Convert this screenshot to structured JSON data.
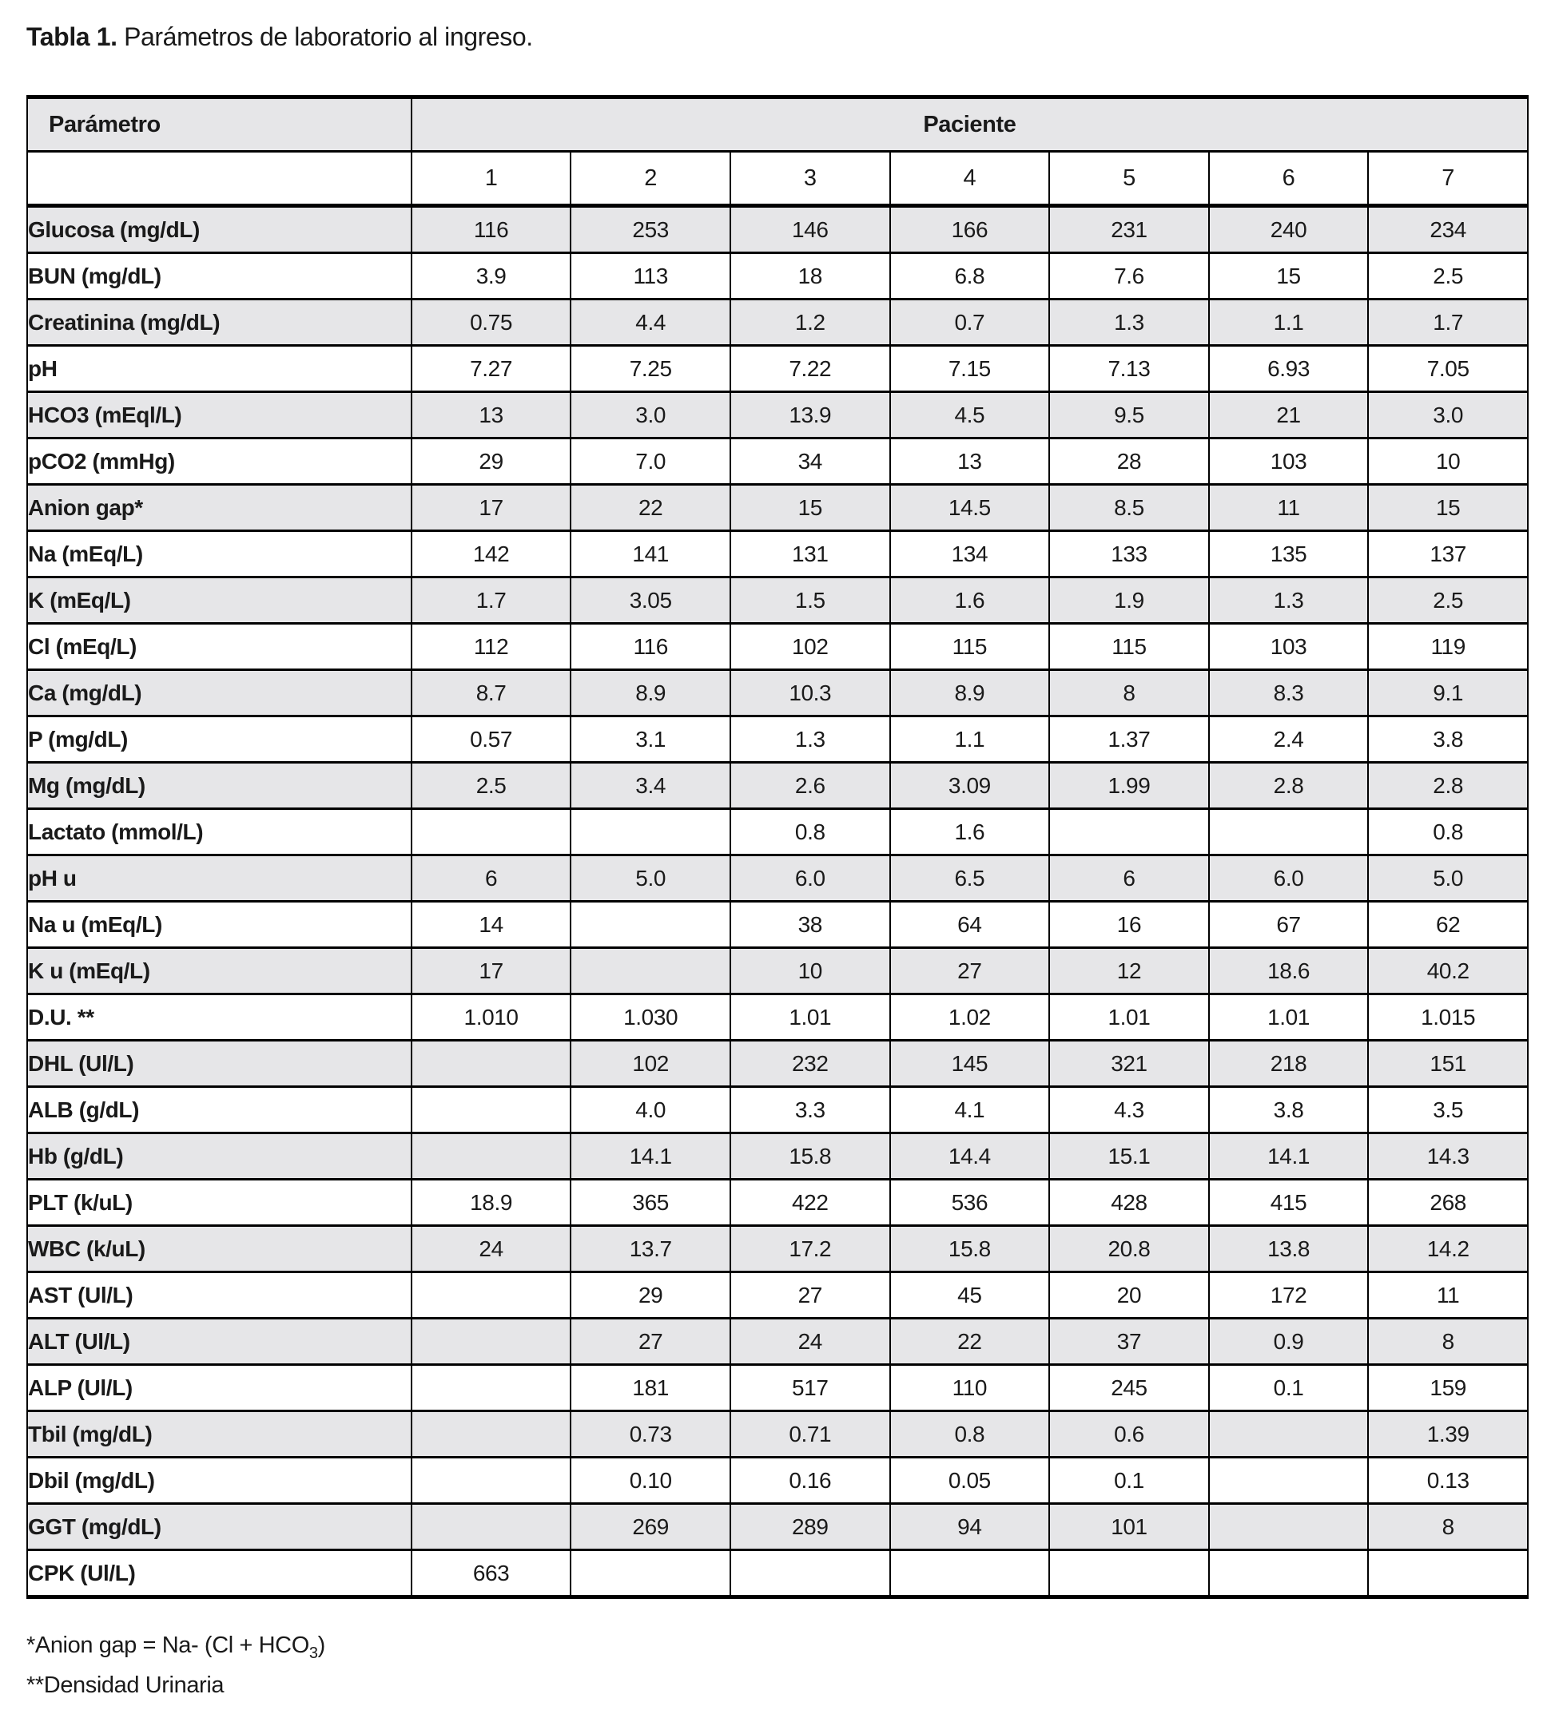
{
  "title": {
    "label": "Tabla 1.",
    "text": " Parámetros de laboratorio al ingreso."
  },
  "table": {
    "param_header": "Parámetro",
    "group_header": "Paciente",
    "patient_numbers": [
      "1",
      "2",
      "3",
      "4",
      "5",
      "6",
      "7"
    ],
    "rows": [
      {
        "label": "Glucosa (mg/dL)",
        "values": [
          "116",
          "253",
          "146",
          "166",
          "231",
          "240",
          "234"
        ]
      },
      {
        "label": "BUN (mg/dL)",
        "values": [
          "3.9",
          "113",
          "18",
          "6.8",
          "7.6",
          "15",
          "2.5"
        ]
      },
      {
        "label": "Creatinina (mg/dL)",
        "values": [
          "0.75",
          "4.4",
          "1.2",
          "0.7",
          "1.3",
          "1.1",
          "1.7"
        ]
      },
      {
        "label": "pH",
        "values": [
          "7.27",
          "7.25",
          "7.22",
          "7.15",
          "7.13",
          "6.93",
          "7.05"
        ]
      },
      {
        "label": "HCO3 (mEql/L)",
        "values": [
          "13",
          "3.0",
          "13.9",
          "4.5",
          "9.5",
          "21",
          "3.0"
        ]
      },
      {
        "label": "pCO2 (mmHg)",
        "values": [
          "29",
          "7.0",
          "34",
          "13",
          "28",
          "103",
          "10"
        ]
      },
      {
        "label": "Anion gap*",
        "values": [
          "17",
          "22",
          "15",
          "14.5",
          "8.5",
          "11",
          "15"
        ]
      },
      {
        "label": "Na (mEq/L)",
        "values": [
          "142",
          "141",
          "131",
          "134",
          "133",
          "135",
          "137"
        ]
      },
      {
        "label": "K (mEq/L)",
        "values": [
          "1.7",
          "3.05",
          "1.5",
          "1.6",
          "1.9",
          "1.3",
          "2.5"
        ]
      },
      {
        "label": "Cl (mEq/L)",
        "values": [
          "112",
          "116",
          "102",
          "115",
          "115",
          "103",
          "119"
        ]
      },
      {
        "label": "Ca (mg/dL)",
        "values": [
          "8.7",
          "8.9",
          "10.3",
          "8.9",
          "8",
          "8.3",
          "9.1"
        ]
      },
      {
        "label": "P (mg/dL)",
        "values": [
          "0.57",
          "3.1",
          "1.3",
          "1.1",
          "1.37",
          "2.4",
          "3.8"
        ]
      },
      {
        "label": "Mg (mg/dL)",
        "values": [
          "2.5",
          "3.4",
          "2.6",
          "3.09",
          "1.99",
          "2.8",
          "2.8"
        ]
      },
      {
        "label": "Lactato (mmol/L)",
        "values": [
          "",
          "",
          "0.8",
          "1.6",
          "",
          "",
          "0.8"
        ]
      },
      {
        "label": "pH u",
        "values": [
          "6",
          "5.0",
          "6.0",
          "6.5",
          "6",
          "6.0",
          "5.0"
        ]
      },
      {
        "label": "Na u (mEq/L)",
        "values": [
          "14",
          "",
          "38",
          "64",
          "16",
          "67",
          "62"
        ]
      },
      {
        "label": "K u (mEq/L)",
        "values": [
          "17",
          "",
          "10",
          "27",
          "12",
          "18.6",
          "40.2"
        ]
      },
      {
        "label": "D.U. **",
        "values": [
          "1.010",
          "1.030",
          "1.01",
          "1.02",
          "1.01",
          "1.01",
          "1.015"
        ]
      },
      {
        "label": "DHL (Ul/L)",
        "values": [
          "",
          "102",
          "232",
          "145",
          "321",
          "218",
          "151"
        ]
      },
      {
        "label": "ALB (g/dL)",
        "values": [
          "",
          "4.0",
          "3.3",
          "4.1",
          "4.3",
          "3.8",
          "3.5"
        ]
      },
      {
        "label": "Hb (g/dL)",
        "values": [
          "",
          "14.1",
          "15.8",
          "14.4",
          "15.1",
          "14.1",
          "14.3"
        ]
      },
      {
        "label": "PLT (k/uL)",
        "values": [
          "18.9",
          "365",
          "422",
          "536",
          "428",
          "415",
          "268"
        ]
      },
      {
        "label": "WBC (k/uL)",
        "values": [
          "24",
          "13.7",
          "17.2",
          "15.8",
          "20.8",
          "13.8",
          "14.2"
        ]
      },
      {
        "label": "AST (Ul/L)",
        "values": [
          "",
          "29",
          "27",
          "45",
          "20",
          "172",
          "11"
        ]
      },
      {
        "label": "ALT (Ul/L)",
        "values": [
          "",
          "27",
          "24",
          "22",
          "37",
          "0.9",
          "8"
        ]
      },
      {
        "label": "ALP (Ul/L)",
        "values": [
          "",
          "181",
          "517",
          "110",
          "245",
          "0.1",
          "159"
        ]
      },
      {
        "label": "Tbil (mg/dL)",
        "values": [
          "",
          "0.73",
          "0.71",
          "0.8",
          "0.6",
          "",
          "1.39"
        ]
      },
      {
        "label": "Dbil (mg/dL)",
        "values": [
          "",
          "0.10",
          "0.16",
          "0.05",
          "0.1",
          "",
          "0.13"
        ]
      },
      {
        "label": "GGT (mg/dL)",
        "values": [
          "",
          "269",
          "289",
          "94",
          "101",
          "",
          "8"
        ]
      },
      {
        "label": "CPK (Ul/L)",
        "values": [
          "663",
          "",
          "",
          "",
          "",
          "",
          ""
        ]
      }
    ]
  },
  "footnotes": {
    "anion_prefix": "*Anion gap = Na- (Cl + HCO",
    "anion_sub": "3",
    "anion_suffix": ")",
    "densidad": "**Densidad Urinaria"
  },
  "colors": {
    "row_shade": "#e6e6e8",
    "border": "#000000",
    "text": "#1a1a1a"
  }
}
